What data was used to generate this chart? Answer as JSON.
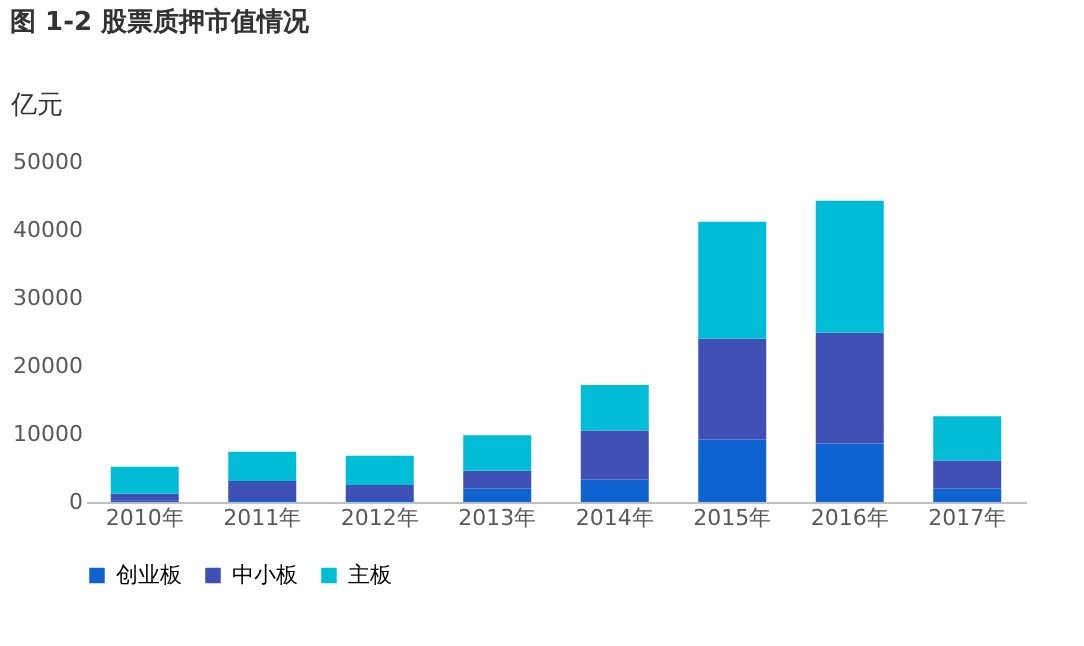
{
  "chart_data": {
    "type": "bar",
    "title": "图 1-2  股票质押市值情况",
    "ylabel": "亿元",
    "stacked": true,
    "legend": "bottom",
    "grid": false,
    "categories": [
      "2010年",
      "2011年",
      "2012年",
      "2013年",
      "2014年",
      "2015年",
      "2016年",
      "2017年"
    ],
    "series": [
      {
        "name": "创业板",
        "color": "#0f63d1",
        "values": [
          200,
          300,
          300,
          2000,
          3300,
          9200,
          8600,
          2000
        ]
      },
      {
        "name": "中小板",
        "color": "#3f4fb3",
        "values": [
          1000,
          2800,
          2200,
          2600,
          7200,
          14800,
          16300,
          4100
        ]
      },
      {
        "name": "主板",
        "color": "#00bcd4",
        "values": [
          4000,
          4300,
          4300,
          5200,
          6700,
          17200,
          19400,
          6500
        ]
      }
    ],
    "ylim": [
      0,
      50000
    ],
    "yticks": [
      0,
      10000,
      20000,
      30000,
      40000,
      50000
    ]
  }
}
